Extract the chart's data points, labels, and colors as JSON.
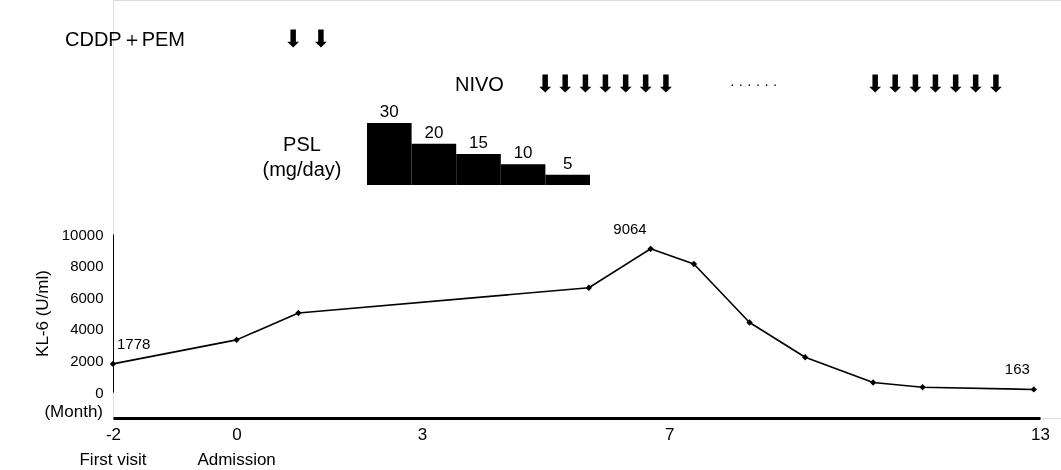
{
  "chart_data": [
    {
      "type": "bar",
      "ylabel": "PSL (mg/day)",
      "categories": [
        null,
        null,
        null,
        null,
        null
      ],
      "values": [
        30,
        20,
        15,
        10,
        5
      ],
      "color": "#000000",
      "data_labels": true,
      "annotations": [
        "CDDP＋PEM",
        "⬇ ⬇",
        "NIVO",
        "⬇⬇⬇⬇⬇⬇⬇",
        "· · · · · ·",
        "⬇⬇⬇⬇⬇⬇⬇"
      ]
    },
    {
      "type": "line",
      "ylabel": "KL-6 (U/ml)",
      "xlabel": "(Month)",
      "x": [
        -2,
        0,
        1,
        5.7,
        6.7,
        7.4,
        8.3,
        9.2,
        10.3,
        11.1,
        12.9
      ],
      "series": [
        {
          "color": "#000000",
          "values": [
            1778,
            3300,
            5000,
            6600,
            9064,
            8100,
            4400,
            2200,
            600,
            300,
            163
          ],
          "value_labels": [
            "1778",
            null,
            null,
            null,
            "9064",
            null,
            null,
            null,
            null,
            null,
            "163"
          ]
        }
      ],
      "xlim": [
        -2,
        13
      ],
      "xticks": [
        -2,
        0,
        3,
        7,
        13
      ],
      "ylim": [
        0,
        10000
      ],
      "yticks": [
        0,
        2000,
        4000,
        6000,
        8000,
        10000
      ],
      "marker": "diamond",
      "line_style": "solid",
      "grid": false,
      "annotations": [
        "First visit",
        "Admission"
      ]
    }
  ]
}
